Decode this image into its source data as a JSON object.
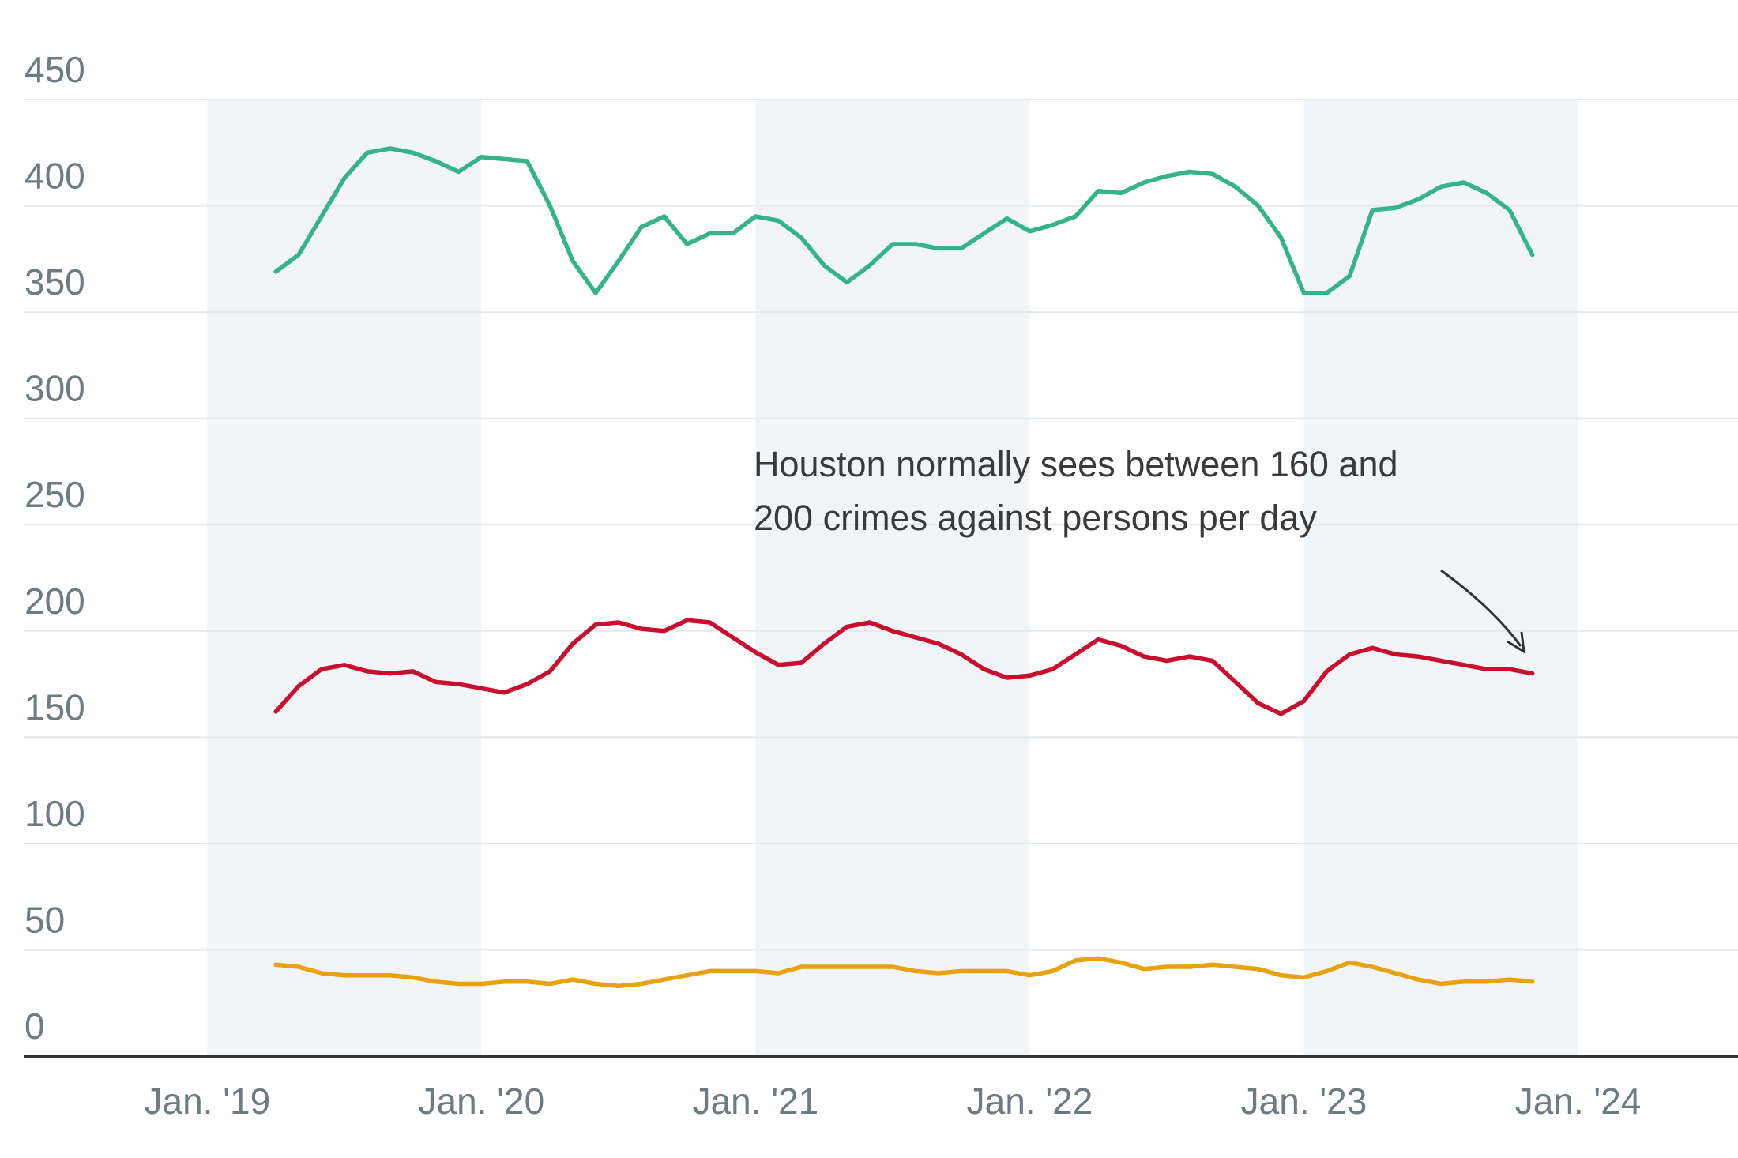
{
  "chart_data": {
    "type": "line",
    "annotation": [
      "Houston normally sees between 160 and",
      "200 crimes against persons per day"
    ],
    "x": [
      "2019-04",
      "2019-05",
      "2019-06",
      "2019-07",
      "2019-08",
      "2019-09",
      "2019-10",
      "2019-11",
      "2019-12",
      "2020-01",
      "2020-02",
      "2020-03",
      "2020-04",
      "2020-05",
      "2020-06",
      "2020-07",
      "2020-08",
      "2020-09",
      "2020-10",
      "2020-11",
      "2020-12",
      "2021-01",
      "2021-02",
      "2021-03",
      "2021-04",
      "2021-05",
      "2021-06",
      "2021-07",
      "2021-08",
      "2021-09",
      "2021-10",
      "2021-11",
      "2021-12",
      "2022-01",
      "2022-02",
      "2022-03",
      "2022-04",
      "2022-05",
      "2022-06",
      "2022-07",
      "2022-08",
      "2022-09",
      "2022-10",
      "2022-11",
      "2022-12",
      "2023-01",
      "2023-02",
      "2023-03",
      "2023-04",
      "2023-05",
      "2023-06",
      "2023-07",
      "2023-08",
      "2023-09",
      "2023-10",
      "2023-11"
    ],
    "series": [
      {
        "color": "#35b38a",
        "values": [
          369,
          377,
          395,
          413,
          425,
          427,
          425,
          421,
          416,
          423,
          422,
          421,
          400,
          374,
          359,
          374,
          390,
          395,
          382,
          387,
          387,
          395,
          393,
          385,
          372,
          364,
          372,
          382,
          382,
          380,
          380,
          387,
          394,
          388,
          391,
          395,
          407,
          406,
          411,
          414,
          416,
          415,
          409,
          400,
          385,
          359,
          359,
          367,
          398,
          399,
          403,
          409,
          411,
          406,
          398,
          377
        ]
      },
      {
        "color": "#c8102e",
        "values": [
          162,
          174,
          182,
          184,
          181,
          180,
          181,
          176,
          175,
          173,
          171,
          175,
          181,
          194,
          203,
          204,
          201,
          200,
          205,
          204,
          197,
          190,
          184,
          185,
          194,
          202,
          204,
          200,
          197,
          194,
          189,
          182,
          178,
          179,
          182,
          189,
          196,
          193,
          188,
          186,
          188,
          186,
          176,
          166,
          161,
          167,
          181,
          189,
          192,
          189,
          188,
          186,
          184,
          182,
          182,
          180
        ]
      },
      {
        "color": "#e9a20f",
        "values": [
          43,
          42,
          39,
          38,
          38,
          38,
          37,
          35,
          34,
          34,
          35,
          35,
          34,
          36,
          34,
          33,
          34,
          36,
          38,
          40,
          40,
          40,
          39,
          42,
          42,
          42,
          42,
          42,
          40,
          39,
          40,
          40,
          40,
          38,
          40,
          45,
          46,
          44,
          41,
          42,
          42,
          43,
          42,
          41,
          38,
          37,
          40,
          44,
          42,
          39,
          36,
          34,
          35,
          35,
          36,
          35
        ]
      }
    ],
    "xlim": [
      "2018-05",
      "2024-08"
    ],
    "xticks": [
      {
        "value": "2019-01",
        "label": "Jan. '19"
      },
      {
        "value": "2020-01",
        "label": "Jan. '20"
      },
      {
        "value": "2021-01",
        "label": "Jan. '21"
      },
      {
        "value": "2022-01",
        "label": "Jan. '22"
      },
      {
        "value": "2023-01",
        "label": "Jan. '23"
      },
      {
        "value": "2024-01",
        "label": "Jan. '24"
      }
    ],
    "ylim": [
      0,
      450
    ],
    "yticks": [
      0,
      50,
      100,
      150,
      200,
      250,
      300,
      350,
      400,
      450
    ],
    "grid": true
  }
}
